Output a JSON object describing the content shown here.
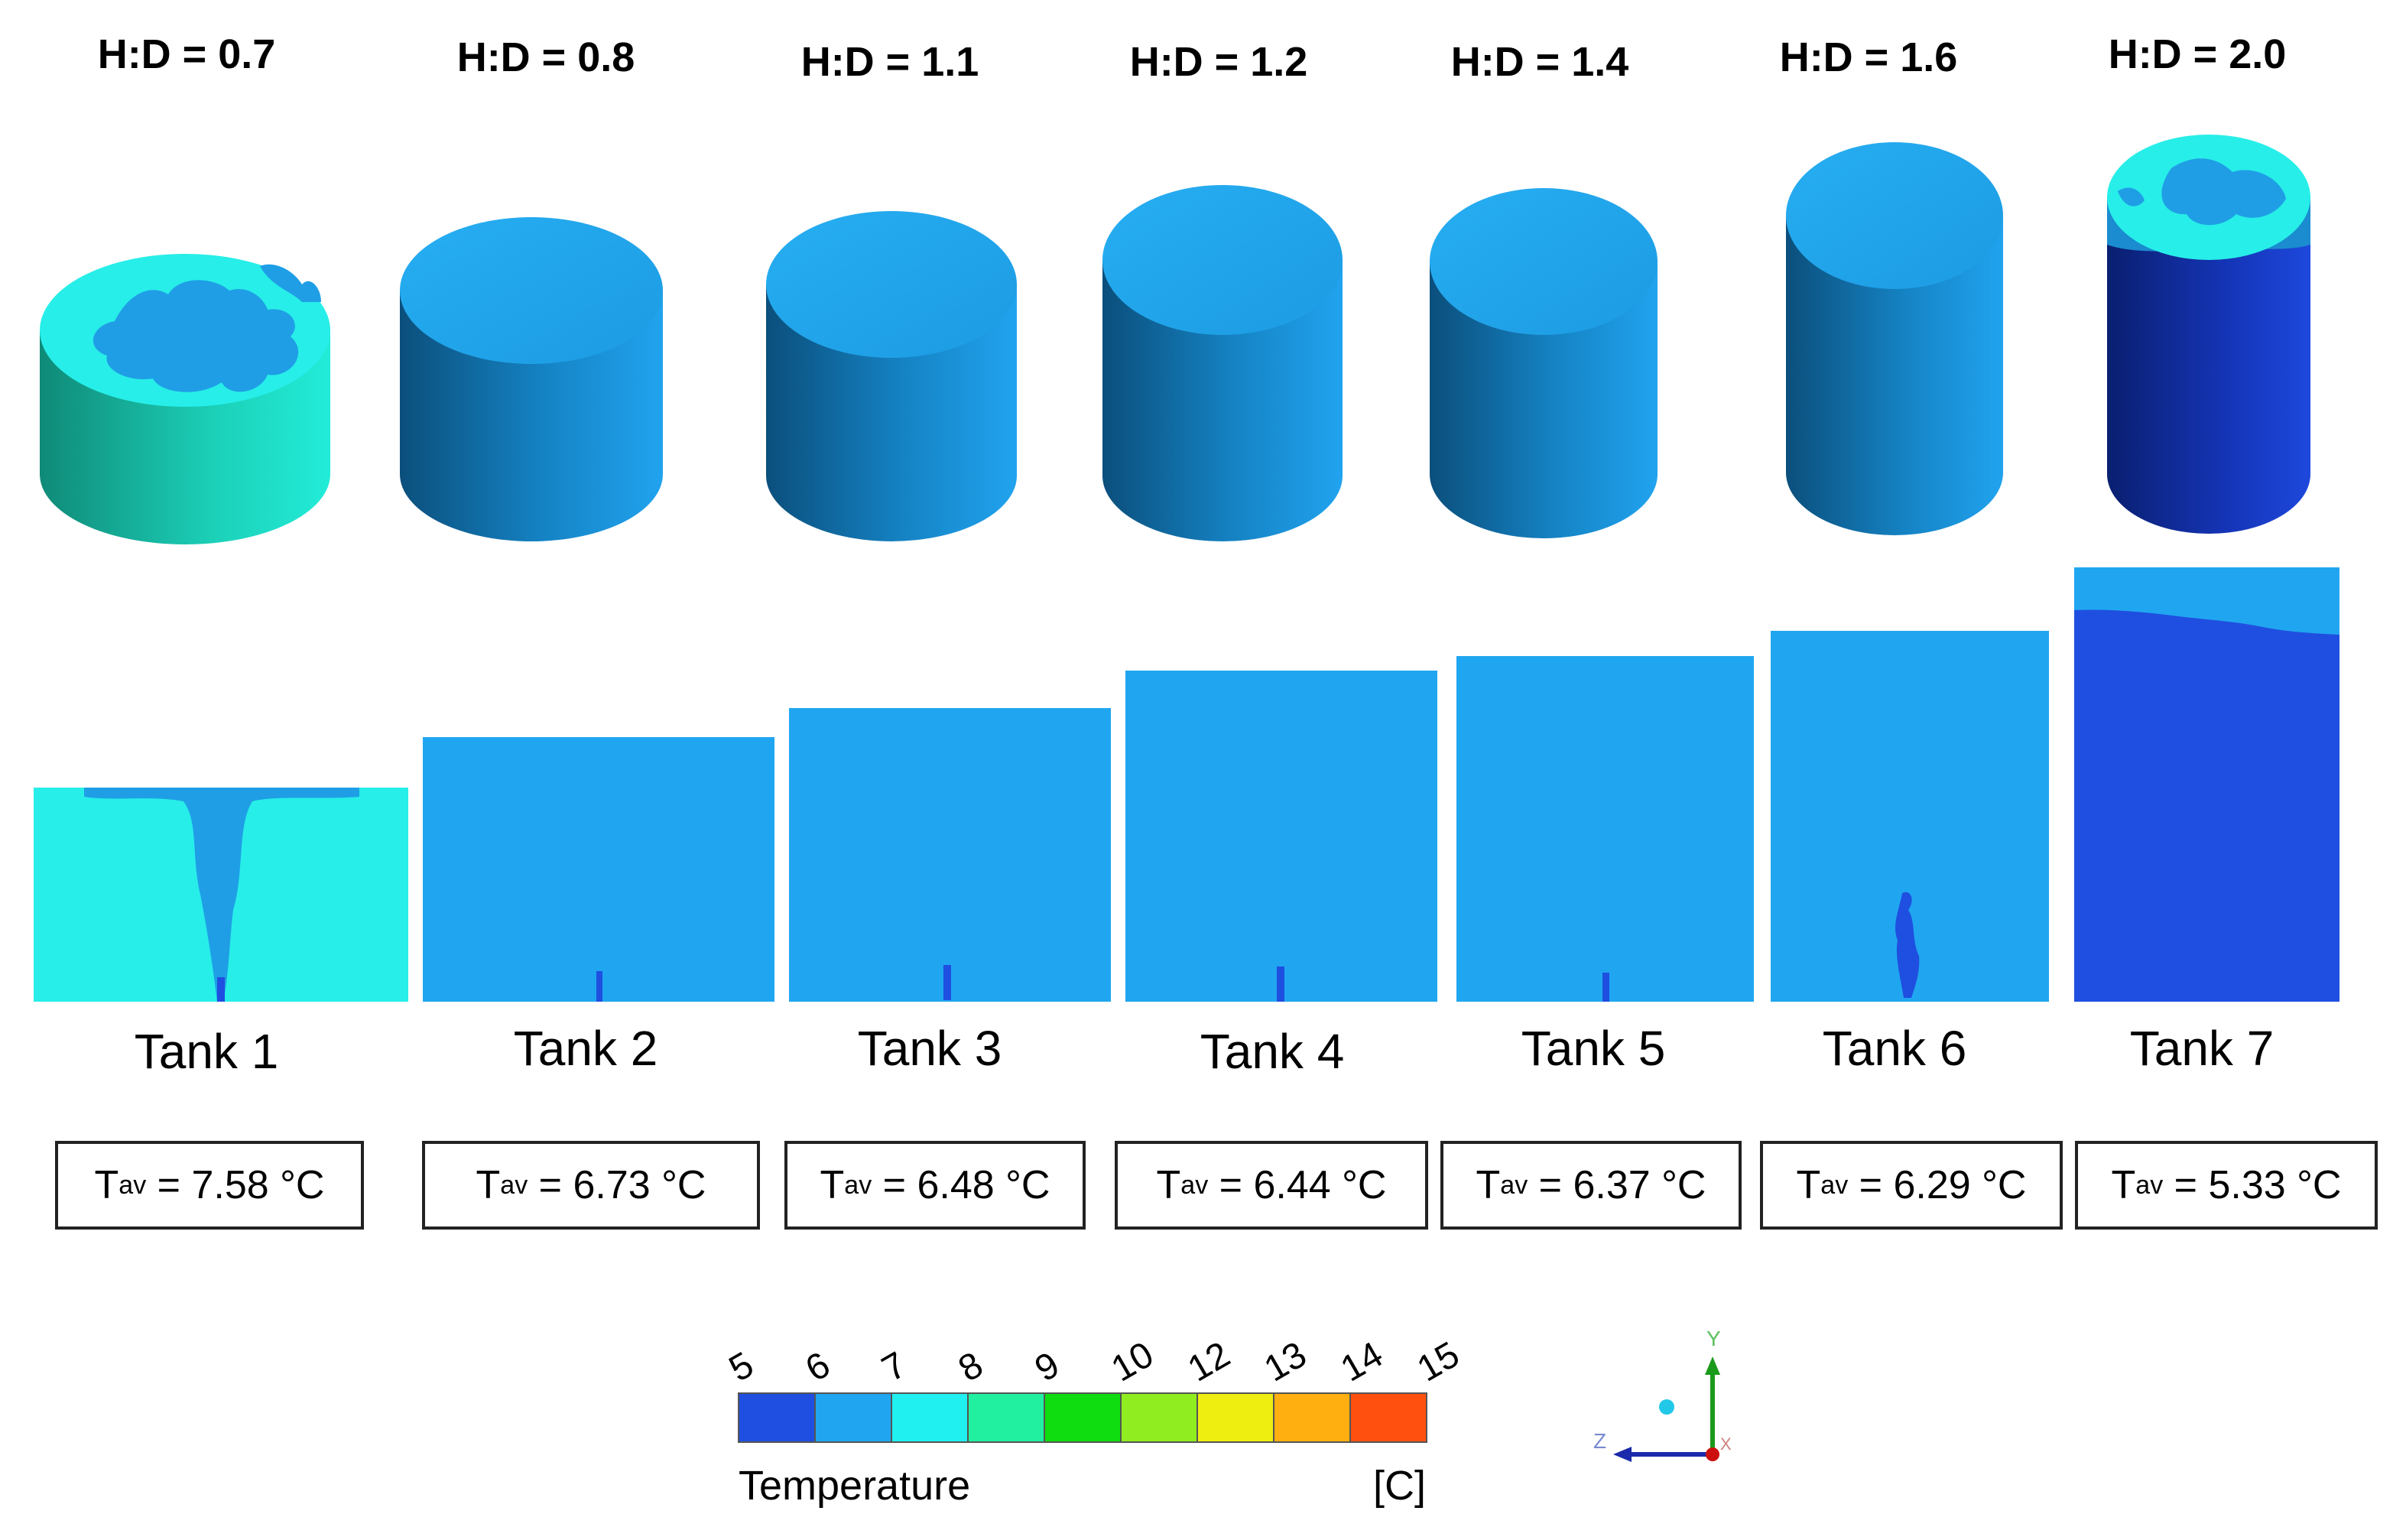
{
  "figure": {
    "ratios": [
      "H:D = 0.7",
      "H:D = 0.8",
      "H:D = 1.1",
      "H:D = 1.2",
      "H:D = 1.4",
      "H:D = 1.6",
      "H:D = 2.0"
    ],
    "tanks": [
      {
        "label": "Tank 1",
        "tav_symbol": "T",
        "tav_sub": "av",
        "tav_value": " = 7.58 °C"
      },
      {
        "label": "Tank 2",
        "tav_symbol": "T",
        "tav_sub": "av",
        "tav_value": " = 6.73 °C"
      },
      {
        "label": "Tank 3",
        "tav_symbol": "T",
        "tav_sub": "av",
        "tav_value": " = 6.48 °C"
      },
      {
        "label": "Tank 4",
        "tav_symbol": "T",
        "tav_sub": "av",
        "tav_value": " = 6.44 °C"
      },
      {
        "label": "Tank 5",
        "tav_symbol": "T",
        "tav_sub": "av",
        "tav_value": " = 6.37 °C"
      },
      {
        "label": "Tank 6",
        "tav_symbol": "T",
        "tav_sub": "av",
        "tav_value": " = 6.29 °C"
      },
      {
        "label": "Tank 7",
        "tav_symbol": "T",
        "tav_sub": "av",
        "tav_value": " = 5.33 °C"
      }
    ]
  },
  "legend": {
    "title": "Temperature",
    "unit": "[C]",
    "ticks": [
      "5",
      "6",
      "7",
      "8",
      "9",
      "10",
      "12",
      "13",
      "14",
      "15"
    ],
    "colors": [
      "#1f4fe0",
      "#20a6f0",
      "#20f0f0",
      "#20f0a0",
      "#10dd10",
      "#90ee20",
      "#eeee10",
      "#ffb010",
      "#ff5010"
    ]
  },
  "axes": {
    "y": "Y",
    "z": "Z",
    "x": "X"
  },
  "colors": {
    "cold": "#1f4fe0",
    "mid": "#20a6f0",
    "warm": "#22f0f0",
    "side_dark": "#0b5f8f",
    "tank7_side": "#1a3fc8"
  }
}
